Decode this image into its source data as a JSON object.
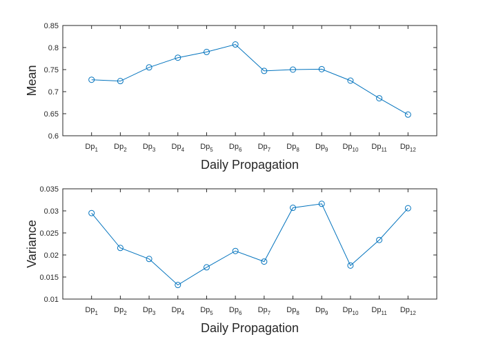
{
  "chart_data": [
    {
      "type": "line",
      "categories": [
        {
          "base": "Dp",
          "sub": "1"
        },
        {
          "base": "Dp",
          "sub": "2"
        },
        {
          "base": "Dp",
          "sub": "3"
        },
        {
          "base": "Dp",
          "sub": "4"
        },
        {
          "base": "Dp",
          "sub": "5"
        },
        {
          "base": "Dp",
          "sub": "6"
        },
        {
          "base": "Dp",
          "sub": "7"
        },
        {
          "base": "Dp",
          "sub": "8"
        },
        {
          "base": "Dp",
          "sub": "9"
        },
        {
          "base": "Dp",
          "sub": "10"
        },
        {
          "base": "Dp",
          "sub": "11"
        },
        {
          "base": "Dp",
          "sub": "12"
        }
      ],
      "values": [
        0.727,
        0.724,
        0.755,
        0.777,
        0.79,
        0.807,
        0.747,
        0.75,
        0.751,
        0.725,
        0.685,
        0.648
      ],
      "xlabel": "Daily Propagation",
      "ylabel": "Mean",
      "ylim": [
        0.6,
        0.85
      ],
      "yticks": [
        "0.6",
        "0.65",
        "0.7",
        "0.75",
        "0.8",
        "0.85"
      ],
      "marker": "circle",
      "grid": false,
      "color": "#0072BD"
    },
    {
      "type": "line",
      "categories": [
        {
          "base": "Dp",
          "sub": "1"
        },
        {
          "base": "Dp",
          "sub": "2"
        },
        {
          "base": "Dp",
          "sub": "3"
        },
        {
          "base": "Dp",
          "sub": "4"
        },
        {
          "base": "Dp",
          "sub": "5"
        },
        {
          "base": "Dp",
          "sub": "6"
        },
        {
          "base": "Dp",
          "sub": "7"
        },
        {
          "base": "Dp",
          "sub": "8"
        },
        {
          "base": "Dp",
          "sub": "9"
        },
        {
          "base": "Dp",
          "sub": "10"
        },
        {
          "base": "Dp",
          "sub": "11"
        },
        {
          "base": "Dp",
          "sub": "12"
        }
      ],
      "values": [
        0.0295,
        0.0216,
        0.0191,
        0.0132,
        0.0172,
        0.0209,
        0.0185,
        0.0307,
        0.0316,
        0.0176,
        0.0234,
        0.0306
      ],
      "xlabel": "Daily Propagation",
      "ylabel": "Variance",
      "ylim": [
        0.01,
        0.035
      ],
      "yticks": [
        "0.01",
        "0.015",
        "0.02",
        "0.025",
        "0.03",
        "0.035"
      ],
      "marker": "circle",
      "grid": false,
      "color": "#0072BD"
    }
  ]
}
